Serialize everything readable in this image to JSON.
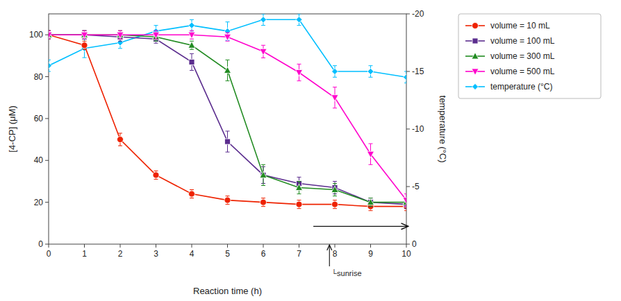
{
  "chart_data": {
    "type": "line",
    "xlabel": "Reaction time (h)",
    "ylabel": "[4-CP] (μM)",
    "y2label": "temperature (°C)",
    "x": [
      0,
      1,
      2,
      3,
      4,
      5,
      6,
      7,
      8,
      9,
      10
    ],
    "xlim": [
      0,
      10
    ],
    "xticks": [
      0,
      1,
      2,
      3,
      4,
      5,
      6,
      7,
      8,
      9,
      10
    ],
    "ylim": [
      0,
      110
    ],
    "yticks": [
      0,
      20,
      40,
      60,
      80,
      100
    ],
    "y2lim": [
      0,
      -20
    ],
    "y2ticks": [
      0,
      -5,
      -10,
      -15,
      -20
    ],
    "grid": false,
    "legend": "right",
    "series": [
      {
        "name": "volume = 10 mL",
        "color": "#EE2200",
        "marker": "circle",
        "line_style": "solid",
        "values": [
          100,
          95,
          50,
          33,
          24,
          21,
          20,
          19,
          19,
          18,
          18
        ],
        "errors": [
          2,
          2,
          3,
          2,
          2,
          2,
          2,
          2,
          2,
          2,
          2
        ]
      },
      {
        "name": "volume = 100 mL",
        "color": "#5B2D8E",
        "marker": "square",
        "line_style": "solid",
        "values": [
          100,
          100,
          99,
          98,
          87,
          49,
          33,
          29,
          27,
          20,
          19
        ],
        "errors": [
          2,
          2,
          2,
          2,
          4,
          5,
          4,
          3,
          3,
          2,
          2
        ]
      },
      {
        "name": "volume = 300 mL",
        "color": "#228B22",
        "marker": "triangle-up",
        "line_style": "solid",
        "values": [
          100,
          100,
          100,
          99,
          95,
          83,
          33,
          27,
          26,
          20,
          20
        ],
        "errors": [
          2,
          2,
          2,
          2,
          2,
          5,
          5,
          3,
          3,
          2,
          2
        ]
      },
      {
        "name": "volume = 500 mL",
        "color": "#FF00CC",
        "marker": "triangle-down",
        "line_style": "solid",
        "values": [
          100,
          100,
          100,
          100,
          100,
          99,
          92,
          82,
          70,
          43,
          21
        ],
        "errors": [
          2,
          2,
          2,
          2,
          2,
          2,
          3,
          4,
          5,
          5,
          3
        ]
      },
      {
        "name": "temperature (°C)",
        "color": "#00BFFF",
        "marker": "diamond",
        "line_style": "solid",
        "axis": "y2",
        "values": [
          -15.5,
          -17.0,
          -17.5,
          -18.5,
          -19.0,
          -18.5,
          -19.5,
          -19.5,
          -15.0,
          -15.0,
          -14.5
        ],
        "errors": [
          0.5,
          0.8,
          0.5,
          0.5,
          0.5,
          0.8,
          0.5,
          0.5,
          0.5,
          0.5,
          0.5
        ]
      }
    ],
    "annotations": [
      {
        "text": "└sunrise",
        "x": 7.85
      },
      {
        "x": [
          7.4,
          10.05
        ],
        "y": 8.5
      }
    ]
  }
}
